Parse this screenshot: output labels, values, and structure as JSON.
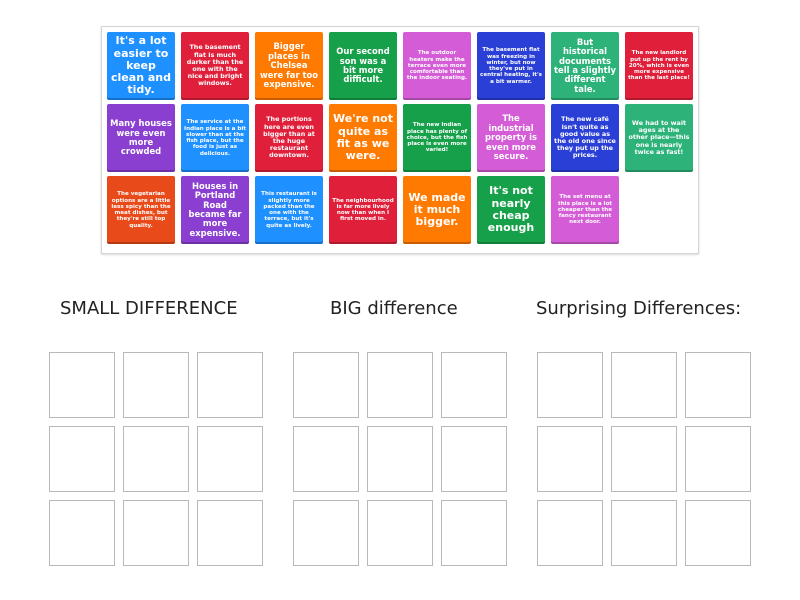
{
  "cards": [
    {
      "text": "It's a lot easier to keep clean and tidy.",
      "color": "#1e90ff"
    },
    {
      "text": "The basement flat is much darker than the one with the nice and bright windows.",
      "color": "#e0203a"
    },
    {
      "text": "Bigger places in Chelsea were far too expensive.",
      "color": "#ff7a00"
    },
    {
      "text": "Our second son was a bit more difficult.",
      "color": "#17a04a"
    },
    {
      "text": "The outdoor heaters make the terrace even more comfortable than the indoor seating.",
      "color": "#d45cd6"
    },
    {
      "text": "The basement flat was freezing in winter, but now they've put in central heating, it's a bit warmer.",
      "color": "#2a3fd6"
    },
    {
      "text": "But historical documents tell a slightly different tale.",
      "color": "#2db37a"
    },
    {
      "text": "The new landlord put up the rent by 20%, which is even more expensive than the last place!",
      "color": "#e0203a"
    },
    {
      "text": "Many houses were even more crowded",
      "color": "#8a3fd1"
    },
    {
      "text": "The service at the Indian place is a bit slower than at the fish place, but the food is just as delicious.",
      "color": "#1e90ff"
    },
    {
      "text": "The portions here are even bigger than at the huge restaurant downtown.",
      "color": "#e0203a"
    },
    {
      "text": "We're not quite as fit as we were.",
      "color": "#ff7a00"
    },
    {
      "text": "The new Indian place has plenty of choice, but the fish place is even more varied!",
      "color": "#17a04a"
    },
    {
      "text": "The industrial property is even more secure.",
      "color": "#d45cd6"
    },
    {
      "text": "The new café isn't quite as good value as the old one since they put up the prices.",
      "color": "#2a3fd6"
    },
    {
      "text": "We had to wait ages at the other place—this one is nearly twice as fast!",
      "color": "#2db37a"
    },
    {
      "text": "The vegetarian options are a little less spicy than the meat dishes, but they're still top quality.",
      "color": "#e84a1a"
    },
    {
      "text": "Houses in Portland Road became far more expensive.",
      "color": "#8a3fd1"
    },
    {
      "text": "This restaurant is slightly more packed than the one with the terrace, but it's quite as lively.",
      "color": "#1e90ff"
    },
    {
      "text": "The neighbourhood is far more lively now than when I first moved in.",
      "color": "#e0203a"
    },
    {
      "text": "We made it much bigger.",
      "color": "#ff7a00"
    },
    {
      "text": "It's not nearly cheap enough",
      "color": "#17a04a"
    },
    {
      "text": "The set menu at this place is a lot cheaper than the fancy restaurant next door.",
      "color": "#d45cd6"
    }
  ],
  "categories": [
    {
      "label": "SMALL DIFFERENCE"
    },
    {
      "label": "BIG difference"
    },
    {
      "label": "Surprising Differences:"
    }
  ]
}
